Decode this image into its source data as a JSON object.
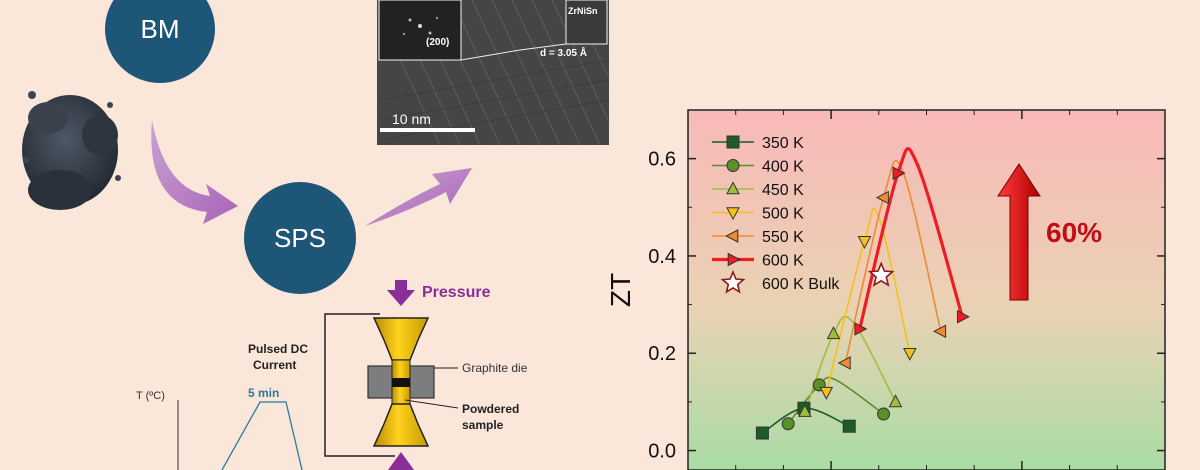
{
  "process": {
    "ball_mill_label": "BM",
    "sps_label": "SPS",
    "pressure_label": "Pressure",
    "pulsed_dc_label_line1": "Pulsed DC",
    "pulsed_dc_label_line2": "Current",
    "graphite_die_label": "Graphite die",
    "powdered_sample_label_line1": "Powdered",
    "powdered_sample_label_line2": "sample",
    "temp_axis_label": "T (ºC)",
    "hold_time_label": "5 min"
  },
  "tem": {
    "fft_index_label": "(200)",
    "phase_label": "ZrNiSn",
    "d_spacing_label": "d = 3.05 Å",
    "scale_bar_label": "10 nm"
  },
  "colors": {
    "node_fill": "#1d5677",
    "arrow_purple": "#b983c4",
    "pressure_arrow": "#8a2f9a",
    "gold": "#f2c200",
    "improvement_red": "#d00a10"
  },
  "chart_data": {
    "type": "line",
    "ylabel": "ZT",
    "ylim": [
      -0.04,
      0.7
    ],
    "xlim": [
      0,
      1
    ],
    "yticks": [
      0.0,
      0.2,
      0.4,
      0.6
    ],
    "xticks_major": [
      0.3,
      0.7
    ],
    "xticks_minor": [
      0.1,
      0.2,
      0.4,
      0.5,
      0.6,
      0.8,
      0.9
    ],
    "legend_position": "top-left",
    "annotation": "60%",
    "series": [
      {
        "name": "350 K",
        "color": "#1f5a2a",
        "marker": "square",
        "marker_points": [
          [
            0.156,
            0.036
          ],
          [
            0.243,
            0.087
          ],
          [
            0.338,
            0.05
          ]
        ],
        "curve": [
          [
            0.156,
            0.036
          ],
          [
            0.243,
            0.087
          ],
          [
            0.338,
            0.05
          ]
        ]
      },
      {
        "name": "400 K",
        "color": "#5a8f2a",
        "marker": "circle",
        "marker_points": [
          [
            0.21,
            0.055
          ],
          [
            0.275,
            0.135
          ],
          [
            0.41,
            0.075
          ]
        ],
        "curve": [
          [
            0.21,
            0.055
          ],
          [
            0.275,
            0.135
          ],
          [
            0.31,
            0.145
          ],
          [
            0.41,
            0.075
          ]
        ]
      },
      {
        "name": "450 K",
        "color": "#9fbf3a",
        "marker": "triangle-up",
        "marker_points": [
          [
            0.245,
            0.08
          ],
          [
            0.305,
            0.24
          ],
          [
            0.435,
            0.1
          ]
        ],
        "curve": [
          [
            0.245,
            0.08
          ],
          [
            0.305,
            0.24
          ],
          [
            0.345,
            0.265
          ],
          [
            0.435,
            0.1
          ]
        ]
      },
      {
        "name": "500 K",
        "color": "#f5c11a",
        "marker": "triangle-down",
        "marker_points": [
          [
            0.29,
            0.12
          ],
          [
            0.37,
            0.43
          ],
          [
            0.465,
            0.2
          ]
        ],
        "curve": [
          [
            0.29,
            0.12
          ],
          [
            0.37,
            0.43
          ],
          [
            0.4,
            0.48
          ],
          [
            0.465,
            0.2
          ]
        ]
      },
      {
        "name": "550 K",
        "color": "#f08a30",
        "marker": "triangle-left",
        "marker_points": [
          [
            0.33,
            0.18
          ],
          [
            0.41,
            0.52
          ],
          [
            0.53,
            0.245
          ]
        ],
        "curve": [
          [
            0.33,
            0.18
          ],
          [
            0.41,
            0.52
          ],
          [
            0.45,
            0.575
          ],
          [
            0.53,
            0.245
          ]
        ]
      },
      {
        "name": "600 K",
        "color": "#ee1c24",
        "marker": "triangle-right",
        "marker_points": [
          [
            0.36,
            0.25
          ],
          [
            0.44,
            0.57
          ],
          [
            0.575,
            0.275
          ]
        ],
        "curve": [
          [
            0.36,
            0.25
          ],
          [
            0.44,
            0.57
          ],
          [
            0.48,
            0.59
          ],
          [
            0.575,
            0.275
          ]
        ]
      },
      {
        "name": "600 K Bulk",
        "color": "#8b1a1a",
        "marker": "star",
        "marker_points": [
          [
            0.405,
            0.36
          ]
        ],
        "curve": []
      }
    ]
  }
}
